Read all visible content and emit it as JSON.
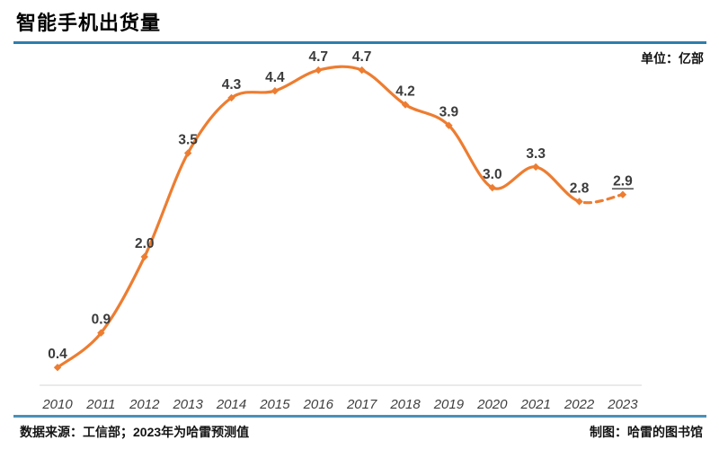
{
  "header": {
    "title": "智能手机出货量",
    "unit_label": "单位：亿部"
  },
  "footer": {
    "source": "数据来源：工信部；2023年为哈雷预测值",
    "credit": "制图：哈雷的图书馆"
  },
  "colors": {
    "line": "#ED7D31",
    "label": "#3B3B3B",
    "tick": "#3F3F3F",
    "axis": "#E4E4E4",
    "ruleTop": "#2E7EAC",
    "ruleBottom": "#4A90B8"
  },
  "chart_data": {
    "type": "line",
    "title": "智能手机出货量",
    "unit": "亿部",
    "categories": [
      "2010",
      "2011",
      "2012",
      "2013",
      "2014",
      "2015",
      "2016",
      "2017",
      "2018",
      "2019",
      "2020",
      "2021",
      "2022",
      "2023"
    ],
    "values": [
      0.4,
      0.9,
      2.0,
      3.5,
      4.3,
      4.4,
      4.7,
      4.7,
      4.2,
      3.9,
      3.0,
      3.3,
      2.8,
      2.9
    ],
    "series_name": "智能手机出货量",
    "line_style": "smooth",
    "marker": "diamond",
    "forecast_category": "2023",
    "forecast_value_underlined": true,
    "dashed_segment": [
      "2022",
      "2023"
    ],
    "ylim": [
      0,
      5
    ],
    "grid": false,
    "legend": "none",
    "xlabel": "",
    "ylabel": ""
  }
}
